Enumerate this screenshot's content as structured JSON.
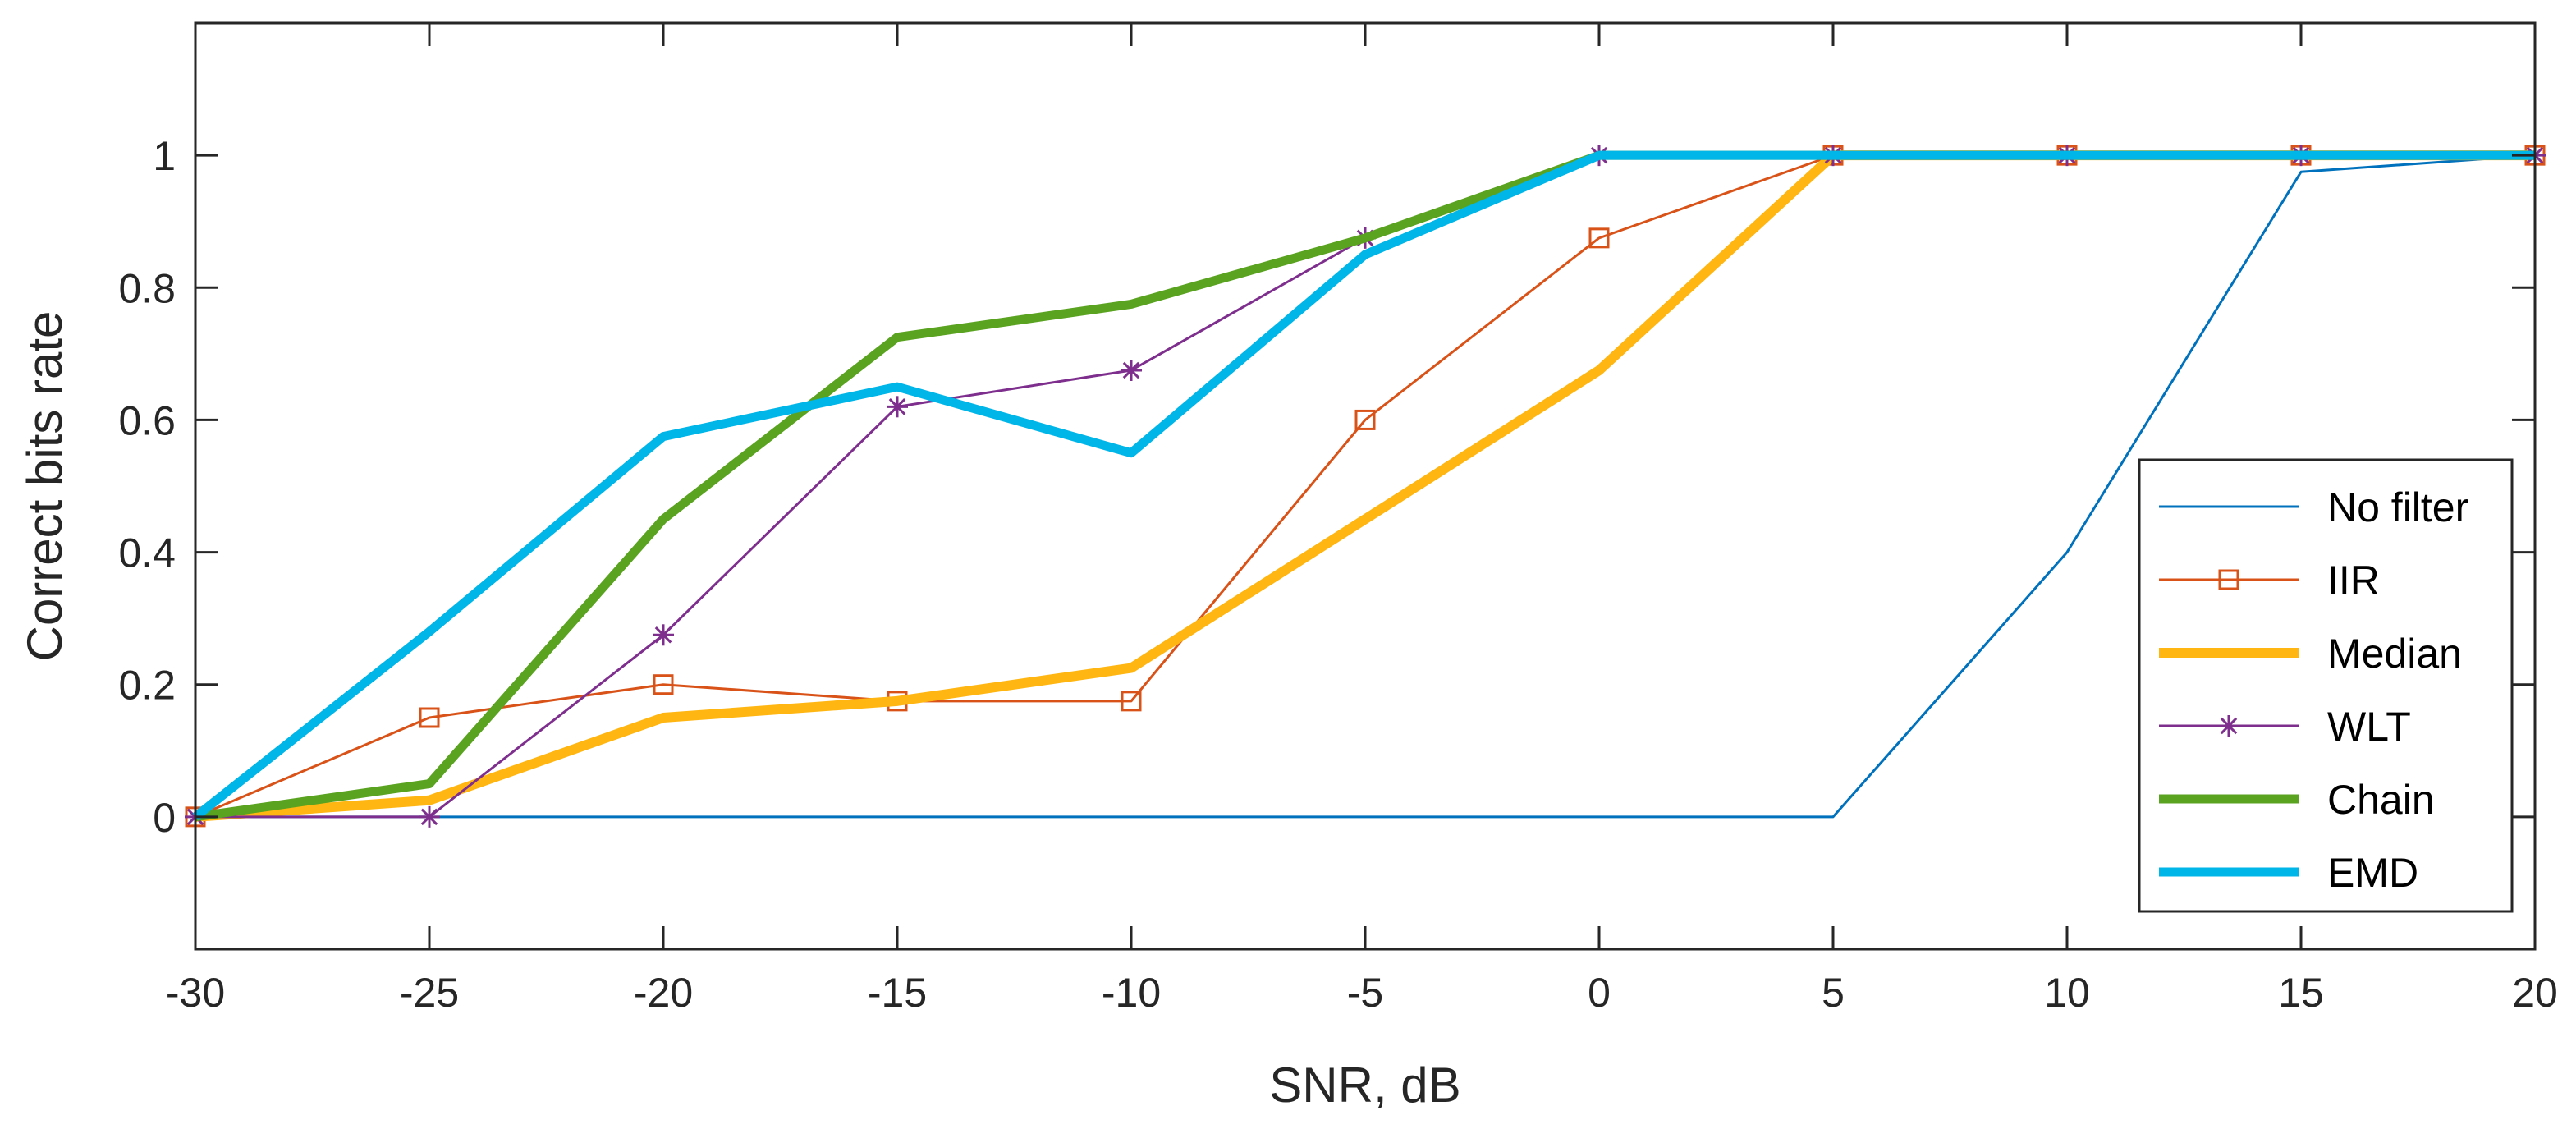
{
  "chart_data": {
    "type": "line",
    "title": "",
    "xlabel": "SNR, dB",
    "ylabel": "Correct bits rate",
    "xlim": [
      -30,
      20
    ],
    "ylim": [
      -0.2,
      1.2
    ],
    "xticks": [
      -30,
      -25,
      -20,
      -15,
      -10,
      -5,
      0,
      5,
      10,
      15,
      20
    ],
    "yticks": [
      0,
      0.2,
      0.4,
      0.6,
      0.8,
      1
    ],
    "ytick_labels": [
      "0",
      "0.2",
      "0.4",
      "0.6",
      "0.8",
      "1"
    ],
    "grid": false,
    "legend_position": "bottom-right",
    "x": [
      -30,
      -25,
      -20,
      -15,
      -10,
      -5,
      0,
      5,
      10,
      15,
      20
    ],
    "series": [
      {
        "name": "No filter",
        "color": "#0072bd",
        "marker": "none",
        "values": [
          0,
          0,
          0,
          0,
          0,
          0,
          0,
          0,
          0.4,
          0.975,
          1
        ]
      },
      {
        "name": "IIR",
        "color": "#d95319",
        "marker": "square",
        "values": [
          0,
          0.15,
          0.2,
          0.175,
          0.175,
          0.6,
          0.875,
          1,
          1,
          1,
          1
        ]
      },
      {
        "name": "Median",
        "color": "#ffb612",
        "marker": "none",
        "values": [
          0,
          0.025,
          0.15,
          0.175,
          0.225,
          0.45,
          0.675,
          1,
          1,
          1,
          1
        ]
      },
      {
        "name": "WLT",
        "color": "#7e2f8e",
        "marker": "asterisk",
        "values": [
          0,
          0,
          0.275,
          0.62,
          0.675,
          0.875,
          1,
          1,
          1,
          1,
          1
        ]
      },
      {
        "name": "Chain",
        "color": "#5aa320",
        "marker": "none",
        "values": [
          0,
          0.05,
          0.45,
          0.725,
          0.775,
          0.875,
          1,
          1,
          1,
          1,
          1
        ]
      },
      {
        "name": "EMD",
        "color": "#00b5e8",
        "marker": "none",
        "values": [
          0,
          0.28,
          0.575,
          0.65,
          0.55,
          0.85,
          1,
          1,
          1,
          1,
          1
        ]
      }
    ]
  }
}
